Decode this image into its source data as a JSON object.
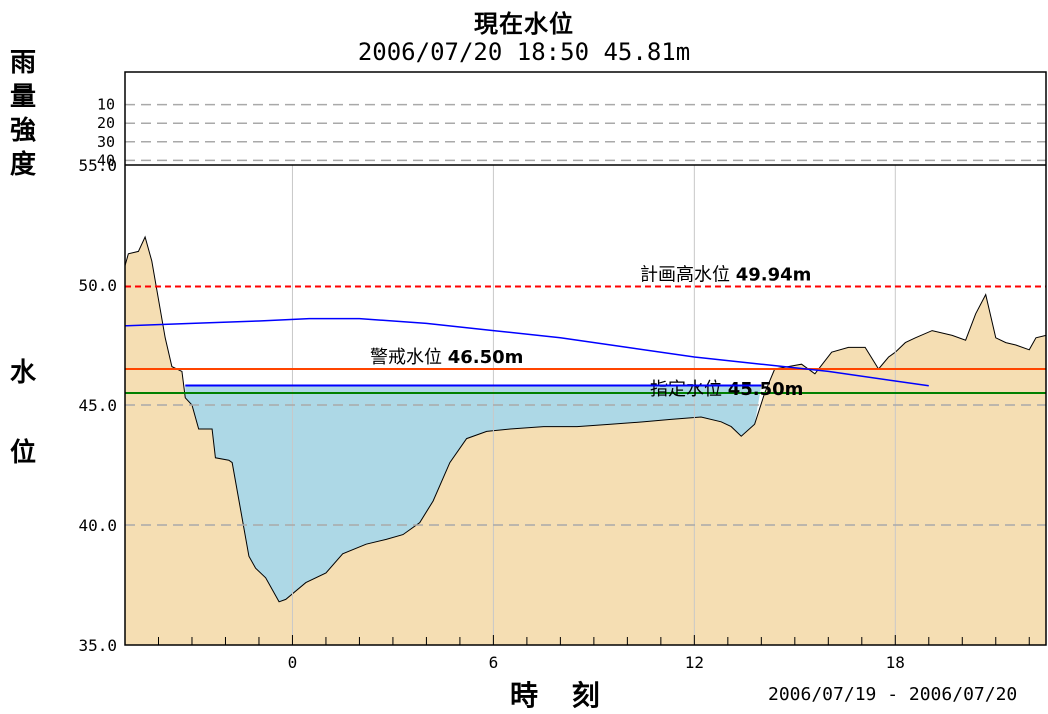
{
  "title": "現在水位",
  "subtitle": "2006/07/20 18:50 45.81m",
  "xlabel": "時 刻",
  "date_range": "2006/07/19 - 2006/07/20",
  "rain_axis_label": [
    "雨",
    "量",
    "強",
    "度"
  ],
  "level_axis_label": [
    "水",
    "位"
  ],
  "colors": {
    "terrain": "#f5deb3",
    "water": "#add8e6",
    "forecast_line": "#0000ff",
    "current_water_line": "#0000ff",
    "plan_high_line": "#ff0000",
    "warning_line": "#ff4500",
    "designated_line": "#008000",
    "grid": "#a9a9a9"
  },
  "chart_data": {
    "type": "area",
    "x_unit": "hours (0 = 2006/07/20 00:00)",
    "xlim": [
      -5,
      22.5
    ],
    "ylim": [
      35.0,
      55.0
    ],
    "rain_ylim": [
      0,
      50
    ],
    "x_ticks": [
      0,
      6,
      12,
      18
    ],
    "x_tick_labels": [
      "0",
      "6",
      "12",
      "18"
    ],
    "y_ticks": [
      35.0,
      40.0,
      45.0,
      50.0,
      55.0
    ],
    "y_tick_labels": [
      "35.0",
      "40.0",
      "45.0",
      "50.0",
      "55.0"
    ],
    "rain_ticks": [
      10,
      20,
      30,
      40
    ],
    "rain_tick_labels": [
      "10",
      "20",
      "30",
      "40"
    ],
    "dashed_y_gridlines": [
      40.0,
      45.0
    ],
    "vertical_grid_x": [
      0,
      6,
      12,
      18
    ],
    "grid": true,
    "thresholds": [
      {
        "label": "計画高水位",
        "value_text": "49.94m",
        "value": 49.94,
        "style": "dashed"
      },
      {
        "label": "警戒水位",
        "value_text": "46.50m",
        "value": 46.5,
        "style": "solid"
      },
      {
        "label": "指定水位",
        "value_text": "45.50m",
        "value": 45.5,
        "style": "solid"
      }
    ],
    "current_water_level": {
      "value": 45.81,
      "x_range": [
        -3.2,
        14.0
      ]
    },
    "terrain_profile": {
      "x": [
        -5.0,
        -4.9,
        -4.6,
        -4.4,
        -4.2,
        -4.0,
        -3.8,
        -3.6,
        -3.3,
        -3.2,
        -3.0,
        -2.8,
        -2.4,
        -2.3,
        -1.9,
        -1.8,
        -1.3,
        -1.1,
        -0.8,
        -0.4,
        -0.2,
        0.4,
        1.0,
        1.5,
        2.2,
        2.8,
        3.3,
        3.8,
        4.2,
        4.7,
        5.2,
        5.8,
        6.5,
        7.5,
        8.5,
        9.5,
        10.5,
        11.3,
        12.2,
        12.8,
        13.1,
        13.4,
        13.8,
        14.1,
        14.4,
        14.8,
        15.2,
        15.6,
        16.1,
        16.6,
        17.1,
        17.5,
        17.8,
        18.0,
        18.3,
        18.6,
        19.1,
        19.7,
        20.1,
        20.4,
        20.7,
        21.0,
        21.3,
        21.6,
        22.0,
        22.2,
        22.5
      ],
      "y": [
        50.8,
        51.3,
        51.4,
        52.0,
        51.0,
        49.4,
        47.8,
        46.6,
        46.4,
        45.3,
        45.0,
        44.0,
        44.0,
        42.8,
        42.7,
        42.6,
        38.7,
        38.2,
        37.8,
        36.8,
        36.9,
        37.6,
        38.0,
        38.8,
        39.2,
        39.4,
        39.6,
        40.1,
        41.0,
        42.6,
        43.6,
        43.9,
        44.0,
        44.1,
        44.1,
        44.2,
        44.3,
        44.4,
        44.5,
        44.3,
        44.1,
        43.7,
        44.2,
        45.5,
        46.5,
        46.6,
        46.7,
        46.3,
        47.2,
        47.4,
        47.4,
        46.5,
        47.0,
        47.2,
        47.6,
        47.8,
        48.1,
        47.9,
        47.7,
        48.8,
        49.6,
        47.8,
        47.6,
        47.5,
        47.3,
        47.8,
        47.9
      ]
    },
    "series": [
      {
        "type": "line",
        "x": [
          -5.0,
          -3.0,
          -1.0,
          0.5,
          2.0,
          4.0,
          6.0,
          8.0,
          10.0,
          12.0,
          14.0,
          16.0,
          18.0,
          19.0
        ],
        "y": [
          48.3,
          48.4,
          48.5,
          48.6,
          48.6,
          48.4,
          48.1,
          47.8,
          47.4,
          47.0,
          46.7,
          46.4,
          46.0,
          45.8
        ]
      }
    ]
  }
}
